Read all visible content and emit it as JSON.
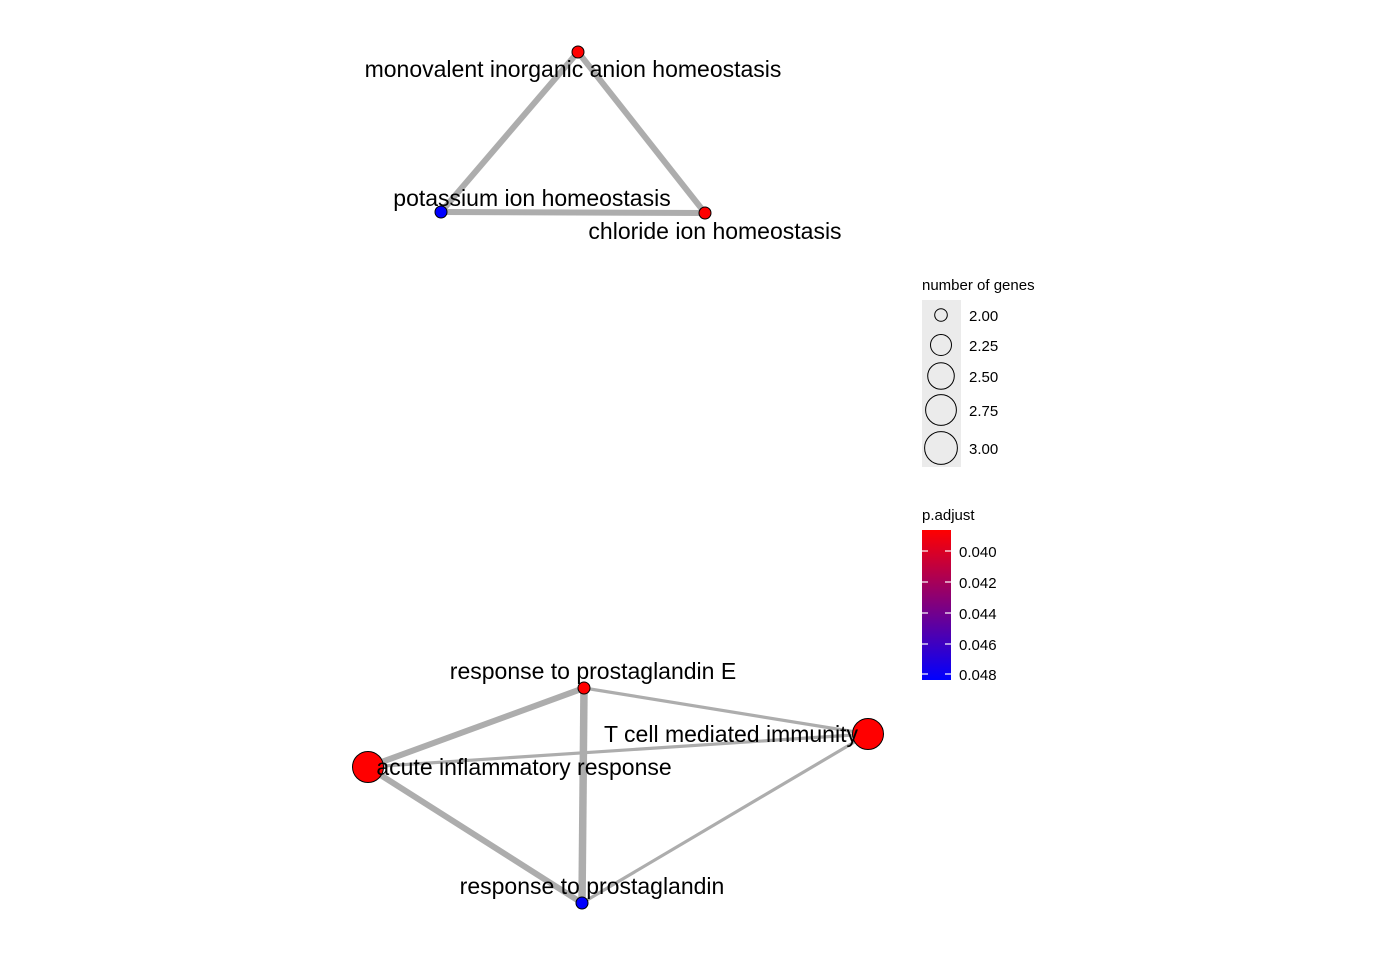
{
  "nodes": [
    {
      "id": "monovalent",
      "label": "monovalent inorganic anion homeostasis",
      "genes": 2,
      "p_adjust": 0.04
    },
    {
      "id": "potassium",
      "label": "potassium ion homeostasis",
      "genes": 2,
      "p_adjust": 0.048
    },
    {
      "id": "chloride",
      "label": "chloride ion homeostasis",
      "genes": 2,
      "p_adjust": 0.04
    },
    {
      "id": "pge",
      "label": "response to prostaglandin E",
      "genes": 2,
      "p_adjust": 0.04
    },
    {
      "id": "tcell",
      "label": "T cell mediated immunity",
      "genes": 3,
      "p_adjust": 0.04
    },
    {
      "id": "acute",
      "label": "acute inflammatory response",
      "genes": 3,
      "p_adjust": 0.04
    },
    {
      "id": "pg",
      "label": "response to prostaglandin",
      "genes": 2,
      "p_adjust": 0.048
    }
  ],
  "edges": [
    {
      "source": "monovalent",
      "target": "potassium",
      "weight": "heavy"
    },
    {
      "source": "monovalent",
      "target": "chloride",
      "weight": "heavy"
    },
    {
      "source": "potassium",
      "target": "chloride",
      "weight": "heavy"
    },
    {
      "source": "pge",
      "target": "acute",
      "weight": "heavy"
    },
    {
      "source": "pge",
      "target": "pg",
      "weight": "heaviest"
    },
    {
      "source": "pge",
      "target": "tcell",
      "weight": "light"
    },
    {
      "source": "acute",
      "target": "tcell",
      "weight": "light"
    },
    {
      "source": "acute",
      "target": "pg",
      "weight": "heavy"
    },
    {
      "source": "tcell",
      "target": "pg",
      "weight": "light"
    }
  ],
  "legend": {
    "size_title": "number of genes",
    "size_ticks": [
      "2.00",
      "2.25",
      "2.50",
      "2.75",
      "3.00"
    ],
    "color_title": "p.adjust",
    "color_ticks": [
      "0.040",
      "0.042",
      "0.044",
      "0.046",
      "0.048"
    ],
    "color_low": "#FF0000",
    "color_high": "#0000FF"
  },
  "colors": {
    "edge": "#ADADAD",
    "node_stroke": "#000000",
    "legend_key_bg": "#EBEBEB"
  }
}
